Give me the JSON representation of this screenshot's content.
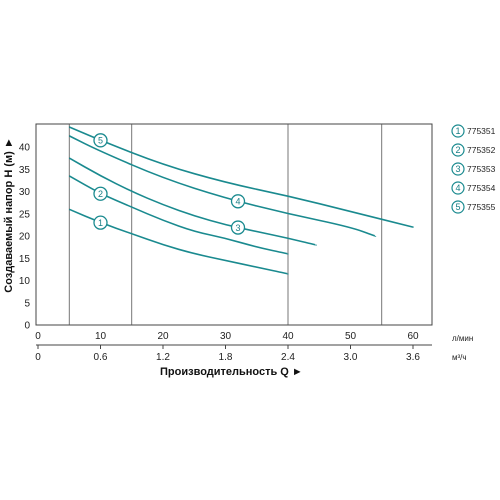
{
  "chart_data": {
    "type": "line",
    "xlabel": "Производительность Q ►",
    "ylabel": "Создаваемый напор Н (м) ►",
    "x_unit_primary": "л/мин",
    "x_unit_secondary": "м³/ч",
    "xlim": [
      0,
      62
    ],
    "ylim": [
      0,
      45
    ],
    "x_ticks": [
      0,
      10,
      20,
      30,
      40,
      50,
      60
    ],
    "x_tick_labels": [
      "0",
      "10",
      "20",
      "30",
      "40",
      "50",
      "60"
    ],
    "x2_ticks": [
      0,
      0.6,
      1.2,
      1.8,
      2.4,
      3.0,
      3.6
    ],
    "x2_tick_labels": [
      "0",
      "0.6",
      "1.2",
      "1.8",
      "2.4",
      "3.0",
      "3.6"
    ],
    "y_ticks": [
      0,
      5,
      10,
      15,
      20,
      25,
      30,
      35,
      40
    ],
    "y_tick_labels": [
      "0",
      "5",
      "10",
      "15",
      "20",
      "25",
      "30",
      "35",
      "40"
    ],
    "grid": "vertical",
    "legend_position": "right",
    "line_color": "#1a8a8f",
    "series": [
      {
        "name": "775351",
        "marker": "1",
        "marker_x": 10,
        "x": [
          5,
          10,
          15,
          20,
          25,
          30,
          35,
          40
        ],
        "y": [
          26,
          23,
          20.5,
          18,
          16,
          14.5,
          13,
          11.5
        ]
      },
      {
        "name": "775352",
        "marker": "2",
        "marker_x": 10,
        "x": [
          5,
          10,
          15,
          20,
          25,
          30,
          35,
          40
        ],
        "y": [
          33.5,
          29.5,
          26.5,
          23.5,
          21,
          19.5,
          17.5,
          16
        ]
      },
      {
        "name": "775353",
        "marker": "3",
        "marker_x": 32,
        "x": [
          5,
          10,
          15,
          20,
          25,
          30,
          35,
          40,
          44.5
        ],
        "y": [
          37.5,
          33.5,
          30,
          27,
          24.5,
          22.5,
          21,
          19.5,
          18
        ]
      },
      {
        "name": "775354",
        "marker": "4",
        "marker_x": 32,
        "x": [
          5,
          10,
          20,
          30,
          40,
          50,
          54
        ],
        "y": [
          42.5,
          39,
          33,
          28.5,
          25,
          22,
          20
        ]
      },
      {
        "name": "775355",
        "marker": "5",
        "marker_x": 10,
        "x": [
          5,
          10,
          20,
          30,
          40,
          50,
          60
        ],
        "y": [
          44.5,
          41.5,
          36,
          32,
          29,
          25.5,
          22
        ]
      }
    ]
  }
}
